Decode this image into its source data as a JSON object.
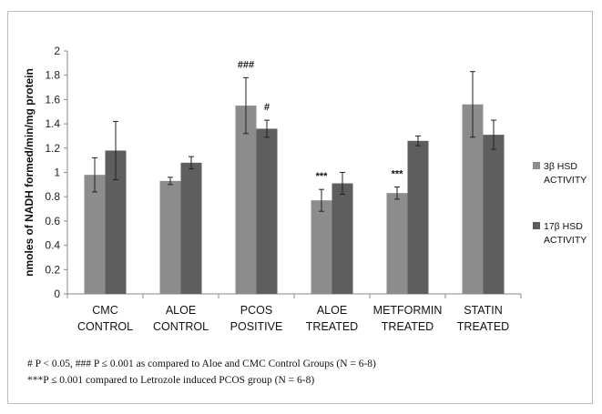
{
  "chart_data": {
    "type": "bar",
    "ylabel": "nmoles of NADH formed/min/mg protein",
    "ylim": [
      0,
      2
    ],
    "yticks": [
      "0",
      "0.2",
      "0.4",
      "0.6",
      "0.8",
      "1",
      "1.2",
      "1.4",
      "1.6",
      "1.8",
      "2"
    ],
    "categories": [
      [
        "CMC",
        "CONTROL"
      ],
      [
        "ALOE",
        "CONTROL"
      ],
      [
        "PCOS",
        "POSITIVE"
      ],
      [
        "ALOE",
        "TREATED"
      ],
      [
        "METFORMIN",
        "TREATED"
      ],
      [
        "STATIN",
        "TREATED"
      ]
    ],
    "series": [
      {
        "name": [
          "3β HSD",
          "ACTIVITY"
        ],
        "color": "#8c8c8c",
        "values": [
          0.98,
          0.93,
          1.55,
          0.77,
          0.83,
          1.56
        ],
        "errors": [
          0.14,
          0.03,
          0.23,
          0.09,
          0.05,
          0.27
        ]
      },
      {
        "name": [
          "17β HSD",
          "ACTIVITY"
        ],
        "color": "#5e5e5e",
        "values": [
          1.18,
          1.08,
          1.36,
          0.91,
          1.26,
          1.31
        ],
        "errors": [
          0.24,
          0.05,
          0.07,
          0.09,
          0.04,
          0.12
        ]
      }
    ],
    "annotations": [
      {
        "category": 2,
        "series": 0,
        "text": "###"
      },
      {
        "category": 2,
        "series": 1,
        "text": "#"
      },
      {
        "category": 3,
        "series": 0,
        "text": "***"
      },
      {
        "category": 4,
        "series": 0,
        "text": "***"
      }
    ],
    "legend_position": "right",
    "grid": false
  },
  "footnotes": [
    "# P < 0.05, ### P ≤ 0.001 as compared to Aloe and CMC Control Groups (N = 6-8)",
    "***P ≤ 0.001 compared to Letrozole induced PCOS group (N = 6-8)"
  ]
}
